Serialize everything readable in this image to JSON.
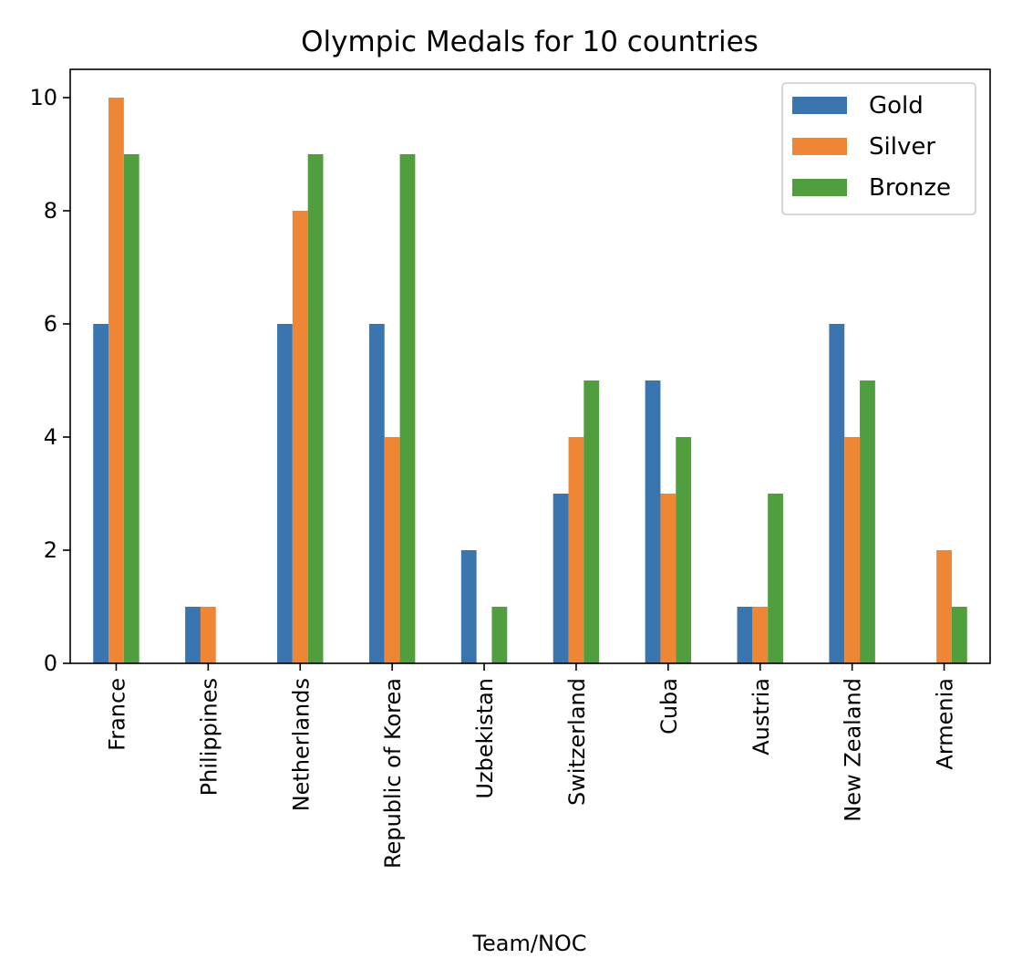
{
  "chart_data": {
    "type": "bar",
    "title": "Olympic Medals for 10 countries",
    "xlabel": "Team/NOC",
    "ylabel": "",
    "ylim": [
      0,
      10.5
    ],
    "yticks": [
      0,
      2,
      4,
      6,
      8,
      10
    ],
    "grid": false,
    "legend_position": "top-right",
    "categories": [
      "France",
      "Philippines",
      "Netherlands",
      "Republic of Korea",
      "Uzbekistan",
      "Switzerland",
      "Cuba",
      "Austria",
      "New Zealand",
      "Armenia"
    ],
    "series": [
      {
        "name": "Gold",
        "color": "#3b75af",
        "values": [
          6,
          1,
          6,
          6,
          2,
          3,
          5,
          1,
          6,
          0
        ]
      },
      {
        "name": "Silver",
        "color": "#ef8636",
        "values": [
          10,
          1,
          8,
          4,
          0,
          4,
          3,
          1,
          4,
          2
        ]
      },
      {
        "name": "Bronze",
        "color": "#519e3e",
        "values": [
          9,
          0,
          9,
          9,
          1,
          5,
          4,
          3,
          5,
          1
        ]
      }
    ]
  }
}
